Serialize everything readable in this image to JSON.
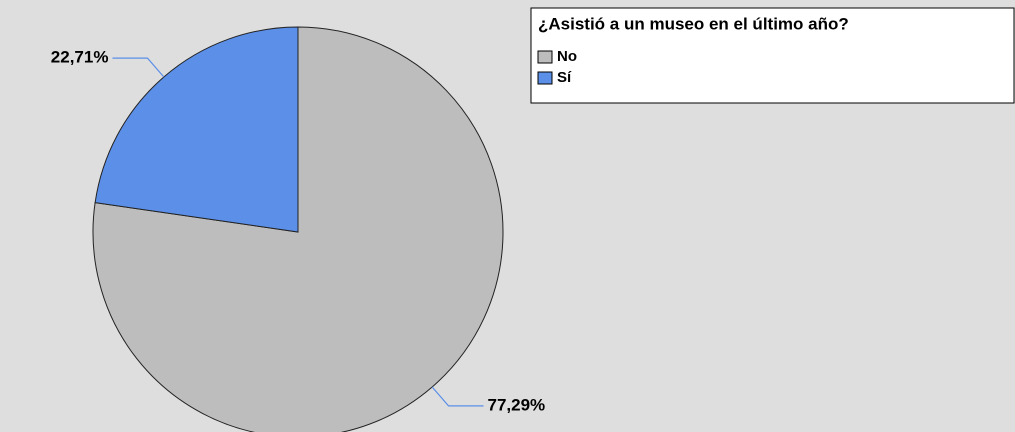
{
  "chart_data": {
    "type": "pie",
    "legend_title": "¿Asistió a un museo en el último año?",
    "categories": [
      "No",
      "Sí"
    ],
    "values": [
      77.29,
      22.71
    ],
    "value_labels": [
      "77,29%",
      "22,71%"
    ],
    "colors": [
      "#bdbdbd",
      "#5b8fe8"
    ],
    "legend": "top-right"
  }
}
